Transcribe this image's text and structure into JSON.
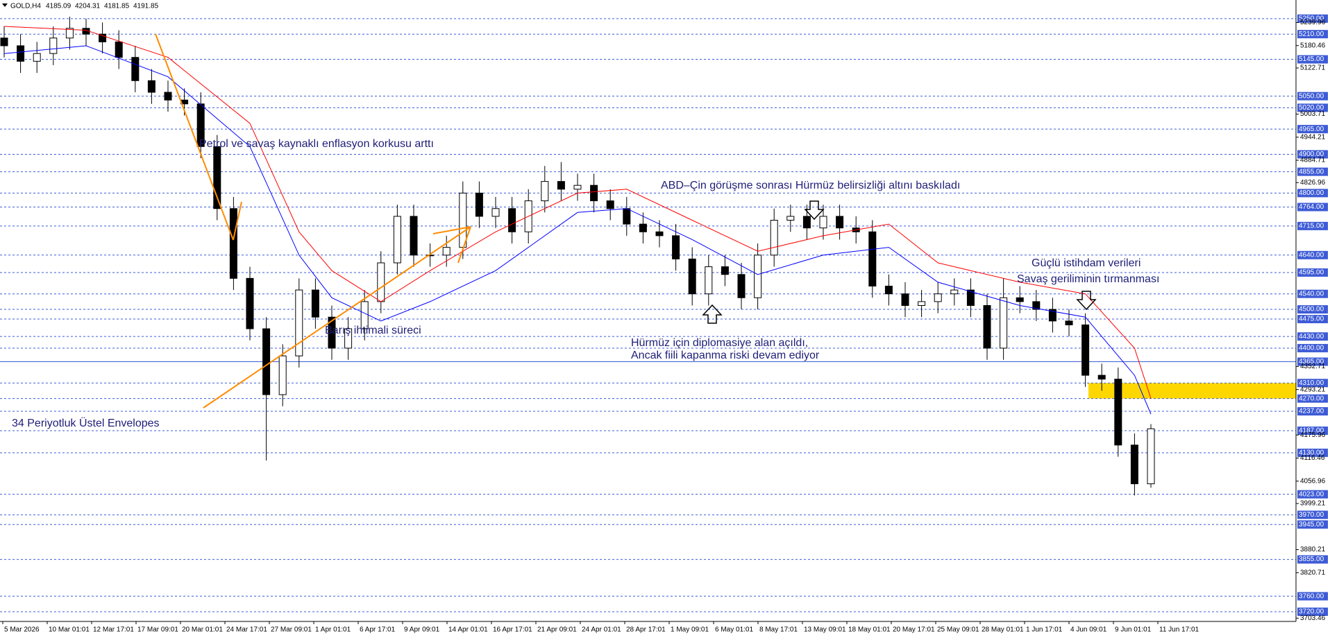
{
  "chart_data": {
    "type": "candlestick",
    "symbol": "GOLD,H4",
    "header_ohlc": [
      4185.09,
      4204.31,
      4181.85,
      4191.85
    ],
    "ylim": [
      3695,
      5273
    ],
    "categories": [
      "5 Mar 2026",
      "10 Mar 01:01",
      "12 Mar 17:01",
      "17 Mar 09:01",
      "20 Mar 01:01",
      "24 Mar 17:01",
      "27 Mar 09:01",
      "1 Apr 01:01",
      "6 Apr 17:01",
      "9 Apr 09:01",
      "14 Apr 01:01",
      "16 Apr 17:01",
      "21 Apr 09:01",
      "24 Apr 01:01",
      "28 Apr 17:01",
      "1 May 09:01",
      "6 May 01:01",
      "8 May 17:01",
      "13 May 09:01",
      "18 May 01:01",
      "20 May 17:01",
      "25 May 09:01",
      "28 May 01:01",
      "1 Jun 17:01",
      "4 Jun 09:01",
      "9 Jun 01:01",
      "11 Jun 17:01"
    ],
    "open": [
      5200,
      5180,
      5140,
      5160,
      5200,
      5225,
      5210,
      5190,
      5150,
      5090,
      5060,
      5040,
      5030,
      4920,
      4760,
      4580,
      4450,
      4280,
      4380,
      4550,
      4480,
      4400,
      4450,
      4520,
      4620,
      4740,
      4640,
      4640,
      4660,
      4800,
      4740,
      4760,
      4700,
      4780,
      4830,
      4810,
      4820,
      4780,
      4760,
      4720,
      4700,
      4690,
      4630,
      4540,
      4610,
      4590,
      4530,
      4640,
      4730,
      4740,
      4710,
      4740,
      4710,
      4700,
      4560,
      4540,
      4510,
      4520,
      4540,
      4550,
      4510,
      4400,
      4530,
      4520,
      4500,
      4470,
      4460,
      4330,
      4320,
      4150,
      4050
    ],
    "high": [
      5230,
      5210,
      5190,
      5230,
      5255,
      5250,
      5240,
      5220,
      5180,
      5120,
      5090,
      5070,
      5060,
      4950,
      4790,
      4610,
      4480,
      4410,
      4580,
      4580,
      4510,
      4480,
      4550,
      4650,
      4770,
      4770,
      4670,
      4690,
      4830,
      4830,
      4790,
      4790,
      4810,
      4870,
      4880,
      4850,
      4850,
      4810,
      4790,
      4750,
      4730,
      4720,
      4660,
      4640,
      4640,
      4620,
      4670,
      4760,
      4770,
      4770,
      4770,
      4770,
      4740,
      4730,
      4590,
      4570,
      4550,
      4570,
      4580,
      4580,
      4540,
      4580,
      4560,
      4550,
      4530,
      4500,
      4490,
      4360,
      4350,
      4180,
      4204
    ],
    "low": [
      5150,
      5110,
      5110,
      5130,
      5170,
      5180,
      5160,
      5120,
      5060,
      5030,
      5010,
      5000,
      4890,
      4730,
      4550,
      4420,
      4110,
      4250,
      4350,
      4450,
      4370,
      4370,
      4420,
      4490,
      4590,
      4610,
      4610,
      4610,
      4630,
      4710,
      4710,
      4670,
      4670,
      4750,
      4780,
      4780,
      4750,
      4730,
      4690,
      4670,
      4660,
      4600,
      4510,
      4510,
      4560,
      4500,
      4500,
      4610,
      4700,
      4680,
      4680,
      4680,
      4670,
      4530,
      4510,
      4480,
      4480,
      4490,
      4510,
      4480,
      4370,
      4370,
      4490,
      4470,
      4440,
      4430,
      4300,
      4290,
      4120,
      4020,
      4040
    ],
    "close": [
      5180,
      5140,
      5160,
      5200,
      5225,
      5210,
      5190,
      5150,
      5090,
      5060,
      5040,
      5030,
      4920,
      4760,
      4580,
      4450,
      4280,
      4380,
      4550,
      4480,
      4400,
      4450,
      4520,
      4620,
      4740,
      4640,
      4640,
      4660,
      4800,
      4740,
      4760,
      4700,
      4780,
      4830,
      4810,
      4820,
      4780,
      4760,
      4720,
      4700,
      4690,
      4630,
      4540,
      4610,
      4590,
      4530,
      4640,
      4730,
      4740,
      4710,
      4740,
      4710,
      4700,
      4560,
      4540,
      4510,
      4520,
      4540,
      4550,
      4510,
      4400,
      4530,
      4520,
      4500,
      4470,
      4460,
      4330,
      4320,
      4150,
      4050,
      4192
    ],
    "up_color": "#000000",
    "down_color": "#000000",
    "envelopes": [
      {
        "color": "#ff0000",
        "x": [
          0,
          5,
          10,
          15,
          18,
          20,
          23,
          26,
          30,
          35,
          38,
          42,
          46,
          50,
          54,
          57,
          62,
          66,
          69,
          70
        ],
        "values": [
          5230,
          5220,
          5150,
          4980,
          4700,
          4600,
          4520,
          4600,
          4700,
          4800,
          4810,
          4730,
          4650,
          4690,
          4720,
          4620,
          4570,
          4540,
          4400,
          4270
        ]
      },
      {
        "color": "#0000ff",
        "x": [
          0,
          5,
          10,
          15,
          18,
          20,
          23,
          26,
          30,
          35,
          38,
          42,
          46,
          50,
          54,
          57,
          62,
          66,
          69,
          70
        ],
        "values": [
          5160,
          5180,
          5100,
          4920,
          4640,
          4530,
          4470,
          4520,
          4600,
          4750,
          4760,
          4680,
          4590,
          4640,
          4660,
          4570,
          4510,
          4480,
          4330,
          4230
        ]
      }
    ],
    "levels": [
      {
        "value": 5250,
        "label": "5250.00"
      },
      {
        "value": 5210,
        "label": "5210.00"
      },
      {
        "value": 5145,
        "label": "5145.00"
      },
      {
        "value": 5050,
        "label": "5050.00"
      },
      {
        "value": 5020,
        "label": "5020.00"
      },
      {
        "value": 4965,
        "label": "4965.00"
      },
      {
        "value": 4900,
        "label": "4900.00"
      },
      {
        "value": 4855,
        "label": "4855.00"
      },
      {
        "value": 4800,
        "label": "4800.00"
      },
      {
        "value": 4764,
        "label": "4764.00"
      },
      {
        "value": 4715,
        "label": "4715.00"
      },
      {
        "value": 4640,
        "label": "4640.00"
      },
      {
        "value": 4595,
        "label": "4595.00"
      },
      {
        "value": 4540,
        "label": "4540.00"
      },
      {
        "value": 4500,
        "label": "4500.00"
      },
      {
        "value": 4475,
        "label": "4475.00"
      },
      {
        "value": 4430,
        "label": "4430.00"
      },
      {
        "value": 4400,
        "label": "4400.00"
      },
      {
        "value": 4365,
        "label": "4365.00",
        "style": "solid"
      },
      {
        "value": 4310,
        "label": "4310.00"
      },
      {
        "value": 4270,
        "label": "4270.00"
      },
      {
        "value": 4237,
        "label": "4237.00"
      },
      {
        "value": 4187,
        "label": "4187.00"
      },
      {
        "value": 4130,
        "label": "4130.00"
      },
      {
        "value": 4023,
        "label": "4023.00"
      },
      {
        "value": 3970,
        "label": "3970.00"
      },
      {
        "value": 3945,
        "label": "3945.00"
      },
      {
        "value": 3855,
        "label": "3855.00"
      },
      {
        "value": 3760,
        "label": "3760.00"
      },
      {
        "value": 3720,
        "label": "3720.00"
      }
    ],
    "level_color": "#3d5bd6",
    "yticks": [
      5239.96,
      5180.46,
      5122.71,
      5003.71,
      4944.21,
      4884.71,
      4826.96,
      4352.71,
      4293.21,
      4175.96,
      4116.46,
      4056.96,
      3999.21,
      3880.21,
      3820.71,
      3703.46
    ],
    "zone": {
      "low": 4270,
      "high": 4310,
      "color": "#ffd700"
    },
    "annotations": [
      "Petrol ve savaş kaynaklı enflasyon korkusu arttı",
      "ABD–Çin görüşme sonrası Hürmüz belirsizliği altını baskıladı",
      "Güçlü istihdam verileri",
      "Savaş geriliminin tırmanması",
      "Barış ihtimali süreci",
      "Hürmüz için diplomasiye alan açıldı,",
      "Ancak fiili kapanma riski devam ediyor",
      "34 Periyotluk Üstel Envelopes"
    ]
  }
}
